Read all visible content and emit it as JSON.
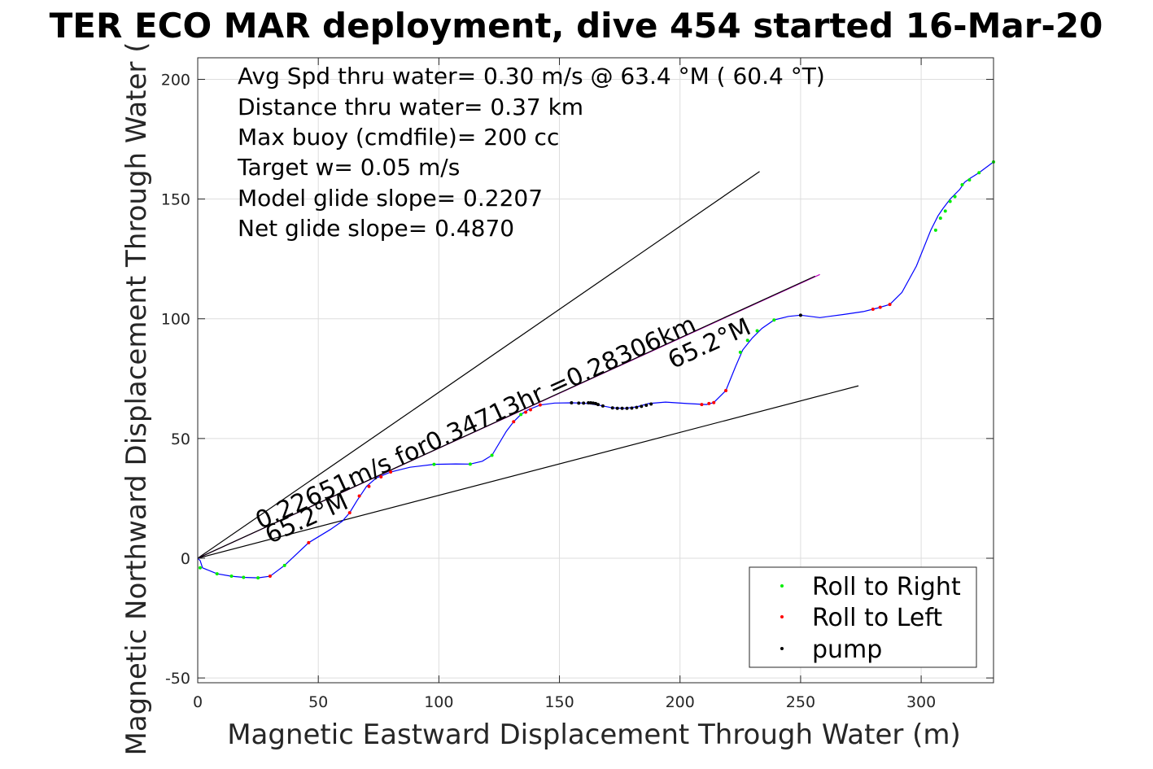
{
  "chart_data": {
    "type": "line",
    "title": "TER ECO MAR deployment, dive 454 started 16-Mar-20",
    "xlabel": "Magnetic Eastward Displacement Through Water (m)",
    "ylabel": "Magnetic Northward Displacement Through Water (",
    "xlim": [
      0,
      330
    ],
    "ylim": [
      -52,
      209
    ],
    "grid": true,
    "x_ticks": [
      0,
      50,
      100,
      150,
      200,
      250,
      300
    ],
    "x_tick_labels": [
      "0",
      "50",
      "100",
      "150",
      "200",
      "250",
      "300"
    ],
    "y_ticks": [
      -50,
      0,
      50,
      100,
      150,
      200
    ],
    "y_tick_labels": [
      "-50",
      "0",
      "50",
      "100",
      "150",
      "200"
    ],
    "info_lines": [
      "Avg Spd thru water=  0.30 m/s @  63.4 °M ( 60.4 °T)",
      "Distance thru water=  0.37 km",
      "Max buoy (cmdfile)= 200 cc",
      "Target w= 0.05 m/s",
      "Model glide slope= 0.2207",
      "Net glide slope= 0.4870"
    ],
    "annotations": [
      {
        "text": "0.22651m/s for0.34713hr =0.28306km",
        "x": 26,
        "y": 12
      },
      {
        "text": "65.2°M",
        "x": 30,
        "y": 6
      },
      {
        "text": "65.2°M",
        "x": 197,
        "y": 79
      }
    ],
    "track": {
      "color": "#0000ff",
      "x": [
        0,
        1,
        2,
        8,
        14,
        19,
        25,
        30,
        36,
        46,
        55,
        60,
        63,
        66,
        70,
        74,
        80,
        88,
        98,
        107,
        113,
        118,
        122,
        128,
        131,
        134,
        137,
        142,
        148,
        155,
        160,
        166,
        172,
        177,
        182,
        187,
        194,
        203,
        211,
        214,
        219,
        223,
        226,
        230,
        234,
        239,
        245,
        250,
        258,
        268,
        276,
        282,
        287,
        292,
        298,
        304,
        307,
        309,
        312,
        316,
        318,
        320,
        324,
        330
      ],
      "y": [
        0,
        -1,
        -4,
        -6.5,
        -7.5,
        -8,
        -8.2,
        -7.5,
        -3,
        6.5,
        12,
        15.5,
        19,
        24,
        30,
        33.5,
        36,
        38,
        39.2,
        39.4,
        39.3,
        40.5,
        43,
        53,
        57,
        60,
        62,
        64,
        64.8,
        64.9,
        64.8,
        64,
        62.8,
        62.6,
        63.2,
        64.6,
        65.2,
        64.6,
        64.2,
        65,
        70,
        80,
        87,
        92,
        96,
        99.5,
        101,
        101.5,
        100.5,
        101.8,
        103,
        104.5,
        106,
        111,
        122,
        137,
        143,
        146,
        150,
        154,
        157,
        158.5,
        161,
        165.5
      ]
    },
    "reference_lines": [
      {
        "name": "upper",
        "color": "#000000",
        "x": [
          0,
          233
        ],
        "y": [
          0,
          161.5
        ]
      },
      {
        "name": "lower",
        "color": "#000000",
        "x": [
          0,
          274
        ],
        "y": [
          0,
          72
        ]
      },
      {
        "name": "net",
        "color": "#c000c0",
        "x": [
          0,
          258
        ],
        "y": [
          0,
          118.5
        ]
      },
      {
        "name": "net-black",
        "color": "#000000",
        "x": [
          0,
          256
        ],
        "y": [
          0,
          117.8
        ]
      }
    ],
    "series": [
      {
        "name": "Roll to Right",
        "color": "#00ee00",
        "points": [
          [
            1,
            -4
          ],
          [
            8,
            -6.5
          ],
          [
            14,
            -7.5
          ],
          [
            19,
            -8
          ],
          [
            25,
            -8.2
          ],
          [
            36,
            -3
          ],
          [
            98,
            39.2
          ],
          [
            113,
            39.3
          ],
          [
            122,
            43
          ],
          [
            134,
            60
          ],
          [
            225,
            86
          ],
          [
            228,
            91
          ],
          [
            232,
            95
          ],
          [
            239,
            99.5
          ],
          [
            306,
            137
          ],
          [
            308,
            142
          ],
          [
            310,
            145
          ],
          [
            312,
            149
          ],
          [
            314,
            151
          ],
          [
            317,
            156
          ],
          [
            320,
            158
          ],
          [
            324,
            161
          ],
          [
            330,
            165.5
          ]
        ]
      },
      {
        "name": "Roll to Left",
        "color": "#ff0000",
        "points": [
          [
            30,
            -7.5
          ],
          [
            46,
            6.5
          ],
          [
            63,
            19
          ],
          [
            67,
            26
          ],
          [
            71,
            30
          ],
          [
            76,
            34
          ],
          [
            80,
            36
          ],
          [
            131,
            57
          ],
          [
            136,
            61
          ],
          [
            138,
            62
          ],
          [
            142,
            64
          ],
          [
            209,
            64.2
          ],
          [
            212,
            64.6
          ],
          [
            214,
            65
          ],
          [
            219,
            70
          ],
          [
            280,
            104
          ],
          [
            283,
            104.8
          ],
          [
            287,
            106
          ]
        ]
      },
      {
        "name": "pump",
        "color": "#000000",
        "points": [
          [
            155,
            64.9
          ],
          [
            158,
            64.8
          ],
          [
            160,
            64.8
          ],
          [
            162,
            64.9
          ],
          [
            163,
            64.9
          ],
          [
            164,
            64.8
          ],
          [
            165,
            64.6
          ],
          [
            166,
            64.2
          ],
          [
            168,
            63.6
          ],
          [
            172,
            62.8
          ],
          [
            174,
            62.6
          ],
          [
            176,
            62.6
          ],
          [
            178,
            62.6
          ],
          [
            180,
            62.7
          ],
          [
            182,
            63.0
          ],
          [
            184,
            63.4
          ],
          [
            186,
            63.9
          ],
          [
            188,
            64.4
          ],
          [
            250,
            101.5
          ]
        ]
      }
    ],
    "legend": {
      "placement": "bottom-right",
      "entries": [
        {
          "label": "Roll to Right",
          "color": "#00ee00"
        },
        {
          "label": "Roll to Left",
          "color": "#ff0000"
        },
        {
          "label": "pump",
          "color": "#000000"
        }
      ]
    }
  }
}
